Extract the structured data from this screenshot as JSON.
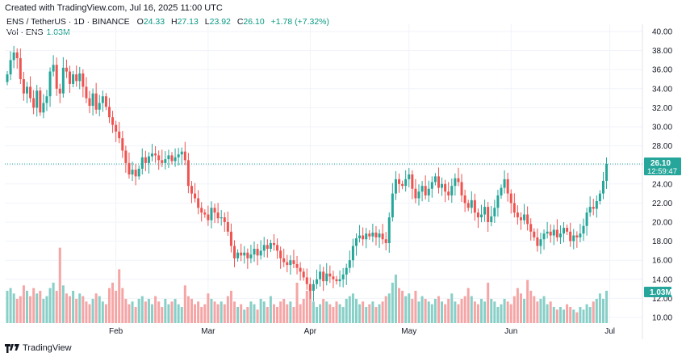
{
  "header": {
    "created": "Created with TradingView.com, Jul 16, 2025 11:00 UTC",
    "symbol": "ENS / TetherUS · 1D · BINANCE",
    "open_label": "O",
    "open": "24.33",
    "high_label": "H",
    "high": "27.13",
    "low_label": "L",
    "low": "23.92",
    "close_label": "C",
    "close": "26.10",
    "change": "+1.78 (+7.32%)",
    "vol_label": "Vol · ENS",
    "vol_value": "1.03M"
  },
  "price_badge": {
    "price": "26.10",
    "countdown": "12:59:47"
  },
  "volume_badge": "1.03M",
  "footer": {
    "brand": "TradingView"
  },
  "colors": {
    "up": "#26a69a",
    "down": "#ef5350",
    "up_vol": "#88cfc7",
    "down_vol": "#f5a5a5",
    "grid": "#f0f3fa"
  },
  "chart_data": {
    "type": "candlestick",
    "y_axis": {
      "min": 10,
      "max": 40,
      "ticks": [
        "40.00",
        "38.00",
        "36.00",
        "34.00",
        "32.00",
        "30.00",
        "28.00",
        "26.00",
        "24.00",
        "22.00",
        "20.00",
        "18.00",
        "16.00",
        "14.00",
        "12.00",
        "10.00"
      ]
    },
    "x_ticks": [
      {
        "label": "Feb",
        "index": 33
      },
      {
        "label": "Mar",
        "index": 61
      },
      {
        "label": "Apr",
        "index": 92
      },
      {
        "label": "May",
        "index": 122
      },
      {
        "label": "Jun",
        "index": 153
      },
      {
        "label": "Jul",
        "index": 183
      }
    ],
    "last_price": 26.1,
    "closes": [
      35.5,
      37.0,
      37.8,
      37.2,
      35.0,
      33.5,
      34.2,
      33.0,
      32.0,
      33.8,
      31.5,
      32.5,
      33.2,
      35.8,
      36.5,
      34.0,
      33.5,
      36.2,
      35.8,
      34.5,
      35.5,
      34.8,
      35.6,
      34.2,
      33.0,
      32.2,
      33.5,
      31.8,
      32.5,
      33.2,
      32.1,
      31.0,
      30.2,
      29.5,
      28.8,
      27.5,
      26.2,
      25.0,
      25.5,
      24.8,
      25.6,
      26.8,
      26.2,
      26.9,
      27.2,
      27.0,
      26.5,
      26.2,
      26.6,
      27.0,
      26.4,
      26.8,
      27.1,
      27.4,
      26.5,
      23.8,
      23.0,
      22.5,
      21.5,
      21.0,
      20.8,
      20.2,
      21.5,
      21.0,
      20.4,
      20.5,
      20.0,
      19.0,
      17.5,
      16.2,
      16.8,
      16.5,
      16.8,
      16.2,
      16.6,
      17.2,
      16.5,
      17.0,
      17.6,
      17.2,
      17.8,
      17.6,
      17.0,
      16.2,
      15.8,
      15.5,
      16.0,
      15.6,
      15.2,
      14.8,
      14.2,
      13.5,
      12.8,
      13.5,
      14.0,
      14.8,
      13.8,
      14.6,
      14.3,
      14.0,
      13.8,
      14.0,
      14.5,
      15.2,
      16.0,
      17.5,
      18.3,
      18.6,
      18.2,
      18.8,
      18.5,
      18.9,
      18.4,
      18.8,
      18.2,
      17.8,
      20.5,
      23.0,
      24.5,
      24.0,
      23.8,
      24.5,
      25.0,
      23.5,
      22.5,
      23.2,
      23.8,
      22.8,
      23.5,
      24.2,
      24.8,
      23.6,
      24.0,
      23.2,
      22.8,
      23.8,
      24.6,
      24.2,
      22.8,
      22.0,
      21.5,
      22.3,
      21.0,
      20.5,
      20.8,
      21.6,
      20.0,
      20.6,
      21.5,
      22.8,
      23.6,
      24.5,
      23.0,
      22.0,
      21.0,
      20.5,
      20.2,
      20.8,
      19.8,
      19.0,
      18.4,
      17.5,
      18.2,
      18.8,
      19.0,
      18.6,
      19.2,
      18.4,
      18.8,
      19.4,
      19.0,
      18.0,
      18.6,
      18.4,
      18.8,
      19.6,
      21.0,
      21.6,
      21.4,
      22.2,
      23.0,
      24.33,
      26.1
    ],
    "volumes": [
      1.2,
      1.3,
      1.1,
      0.9,
      1.0,
      1.4,
      1.2,
      1.0,
      1.3,
      1.1,
      1.2,
      0.9,
      1.0,
      1.3,
      1.5,
      1.2,
      2.8,
      1.4,
      1.1,
      1.0,
      1.2,
      0.9,
      1.1,
      1.0,
      0.8,
      0.7,
      0.9,
      1.1,
      1.0,
      0.8,
      0.7,
      1.3,
      1.5,
      1.2,
      2.0,
      1.3,
      0.9,
      0.7,
      0.8,
      0.6,
      0.9,
      1.0,
      0.8,
      0.9,
      0.7,
      1.0,
      0.8,
      0.6,
      0.9,
      0.7,
      0.8,
      0.9,
      0.7,
      0.6,
      1.4,
      1.0,
      0.9,
      0.7,
      0.8,
      0.6,
      0.7,
      1.1,
      0.9,
      0.8,
      0.7,
      0.8,
      0.7,
      1.0,
      1.2,
      0.8,
      0.6,
      0.7,
      0.5,
      0.6,
      0.8,
      0.7,
      0.5,
      0.9,
      0.8,
      0.6,
      1.0,
      0.7,
      0.6,
      0.8,
      0.9,
      0.7,
      0.8,
      0.6,
      1.5,
      0.7,
      0.9,
      1.2,
      1.3,
      0.8,
      0.6,
      0.7,
      0.9,
      0.8,
      0.7,
      0.6,
      0.8,
      0.7,
      0.6,
      0.9,
      1.0,
      1.1,
      0.9,
      0.7,
      0.8,
      0.6,
      0.7,
      0.8,
      0.6,
      0.7,
      0.8,
      1.0,
      1.1,
      1.5,
      1.8,
      1.3,
      1.2,
      1.0,
      1.1,
      0.9,
      1.2,
      0.8,
      1.0,
      0.9,
      0.8,
      0.7,
      0.9,
      1.0,
      0.8,
      0.7,
      0.9,
      1.1,
      0.8,
      0.7,
      0.9,
      1.0,
      1.3,
      1.0,
      0.8,
      0.7,
      0.9,
      0.8,
      1.5,
      0.9,
      0.8,
      0.6,
      0.7,
      0.9,
      0.8,
      0.7,
      1.0,
      1.3,
      1.1,
      0.9,
      1.6,
      1.2,
      1.0,
      0.8,
      0.9,
      1.0,
      0.7,
      0.8,
      0.6,
      0.5,
      0.6,
      0.5,
      0.7,
      0.6,
      0.5,
      0.4,
      0.6,
      0.5,
      0.7,
      0.6,
      0.8,
      0.9,
      1.1,
      0.9,
      1.2,
      1.4,
      1.03
    ]
  }
}
